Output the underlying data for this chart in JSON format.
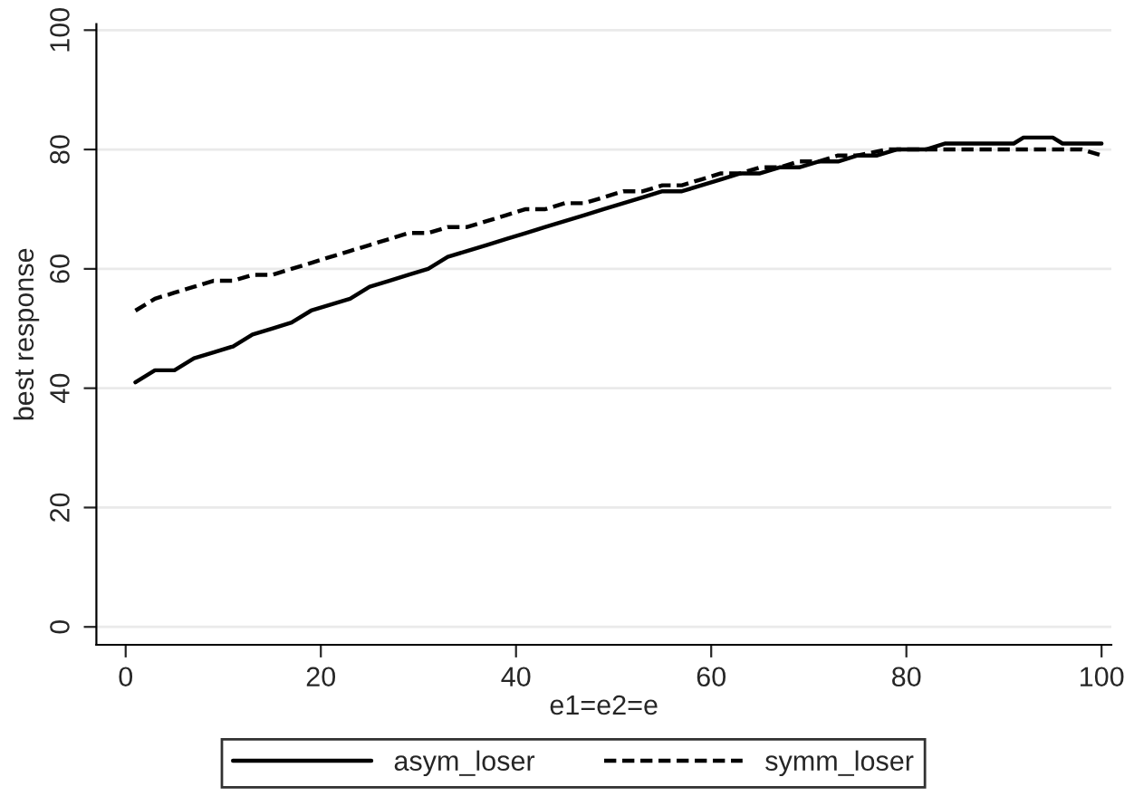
{
  "chart_data": {
    "type": "line",
    "xlabel": "e1=e2=e",
    "ylabel": "best response",
    "xlim": [
      -3,
      101
    ],
    "ylim": [
      -3,
      101
    ],
    "xticks": [
      0,
      20,
      40,
      60,
      80,
      100
    ],
    "yticks": [
      0,
      20,
      40,
      60,
      80,
      100
    ],
    "grid": "y",
    "legend": "bottom",
    "series": [
      {
        "name": "asym_loser",
        "color": "#000000",
        "line_style": "solid",
        "x": [
          1,
          3,
          5,
          7,
          9,
          11,
          13,
          15,
          17,
          19,
          21,
          23,
          25,
          27,
          29,
          31,
          33,
          35,
          37,
          39,
          41,
          43,
          45,
          47,
          49,
          51,
          53,
          55,
          57,
          59,
          61,
          63,
          65,
          67,
          69,
          71,
          73,
          75,
          77,
          79,
          82,
          84,
          88,
          91,
          92,
          95,
          96,
          100
        ],
        "values": [
          41,
          43,
          43,
          45,
          46,
          47,
          49,
          50,
          51,
          53,
          54,
          55,
          57,
          58,
          59,
          60,
          62,
          63,
          64,
          65,
          66,
          67,
          68,
          69,
          70,
          71,
          72,
          73,
          73,
          74,
          75,
          76,
          76,
          77,
          77,
          78,
          78,
          79,
          79,
          80,
          80,
          81,
          81,
          81,
          82,
          82,
          81,
          81
        ]
      },
      {
        "name": "symm_loser",
        "color": "#000000",
        "line_style": "dashed",
        "x": [
          1,
          3,
          5,
          7,
          9,
          11,
          13,
          15,
          17,
          19,
          21,
          23,
          25,
          27,
          29,
          31,
          33,
          35,
          37,
          39,
          41,
          43,
          45,
          47,
          49,
          51,
          53,
          55,
          57,
          59,
          61,
          63,
          65,
          67,
          69,
          71,
          73,
          75,
          78,
          90,
          98,
          100
        ],
        "values": [
          53,
          55,
          56,
          57,
          58,
          58,
          59,
          59,
          60,
          61,
          62,
          63,
          64,
          65,
          66,
          66,
          67,
          67,
          68,
          69,
          70,
          70,
          71,
          71,
          72,
          73,
          73,
          74,
          74,
          75,
          76,
          76,
          77,
          77,
          78,
          78,
          79,
          79,
          80,
          80,
          80,
          79
        ]
      }
    ]
  }
}
